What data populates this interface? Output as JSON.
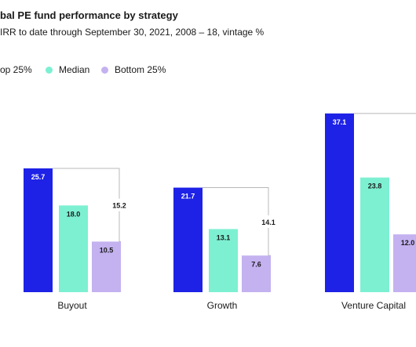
{
  "header": {
    "title": "bal PE fund performance by strategy",
    "subtitle": "IRR to date through September 30, 2021, 2008 – 18, vintage %"
  },
  "legend": {
    "items": [
      {
        "label": "op 25%",
        "color": "#1e22e6"
      },
      {
        "label": "Median",
        "color": "#7df0d2"
      },
      {
        "label": "Bottom 25%",
        "color": "#c4b1f0"
      }
    ]
  },
  "chart_data": {
    "type": "bar",
    "categories": [
      "Buyout",
      "Growth",
      "Venture Capital"
    ],
    "series": [
      {
        "name": "op 25%",
        "values": [
          25.7,
          21.7,
          37.1
        ],
        "color": "#1e22e6",
        "label_color": "#ffffff"
      },
      {
        "name": "Median",
        "values": [
          18.0,
          13.1,
          23.8
        ],
        "color": "#7df0d2",
        "label_color": "#1a1a1a"
      },
      {
        "name": "Bottom 25%",
        "values": [
          10.5,
          7.6,
          12.0
        ],
        "color": "#c4b1f0",
        "label_color": "#1a1a1a"
      }
    ],
    "spread_labels": [
      "15.2",
      "14.1",
      ""
    ],
    "legend_position": "top-left",
    "grid": false
  }
}
